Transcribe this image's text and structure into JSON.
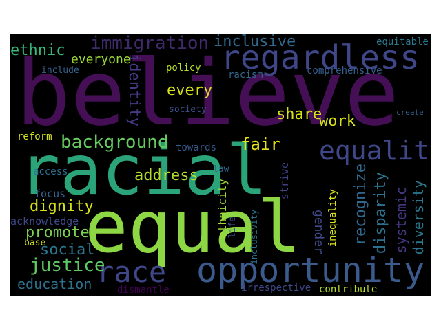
{
  "words": [
    {
      "text": "believe",
      "color": "#440f55"
    },
    {
      "text": "racial",
      "color": "#2ca47a"
    },
    {
      "text": "equal",
      "color": "#8dd644"
    },
    {
      "text": "regardless",
      "color": "#3f4788"
    },
    {
      "text": "opportunity",
      "color": "#3b5b8d"
    },
    {
      "text": "race",
      "color": "#3f4788"
    },
    {
      "text": "equality",
      "color": "#3f4788"
    },
    {
      "text": "immigration",
      "color": "#3f2a6a"
    },
    {
      "text": "inclusive",
      "color": "#31688e"
    },
    {
      "text": "background",
      "color": "#65cb5e"
    },
    {
      "text": "ethnic",
      "color": "#37b878"
    },
    {
      "text": "everyone",
      "color": "#9ed93a"
    },
    {
      "text": "every",
      "color": "#d8e219"
    },
    {
      "text": "policy",
      "color": "#b5de2b"
    },
    {
      "text": "racism",
      "color": "#31688e"
    },
    {
      "text": "comprehensive",
      "color": "#355e8d"
    },
    {
      "text": "equitable",
      "color": "#2a788e"
    },
    {
      "text": "include",
      "color": "#34618d"
    },
    {
      "text": "identity",
      "color": "#443b84"
    },
    {
      "text": "share",
      "color": "#d8e219"
    },
    {
      "text": "work",
      "color": "#d8e219"
    },
    {
      "text": "fair",
      "color": "#e5e419"
    },
    {
      "text": "reform",
      "color": "#d2e21b"
    },
    {
      "text": "towards",
      "color": "#365c8d"
    },
    {
      "text": "address",
      "color": "#b5de2b"
    },
    {
      "text": "access",
      "color": "#2c718e"
    },
    {
      "text": "law",
      "color": "#31688e"
    },
    {
      "text": "dignity",
      "color": "#d8e219"
    },
    {
      "text": "focus",
      "color": "#33638d"
    },
    {
      "text": "promote",
      "color": "#7ad151"
    },
    {
      "text": "social",
      "color": "#2a768e"
    },
    {
      "text": "justice",
      "color": "#5ec962"
    },
    {
      "text": "education",
      "color": "#2c728e"
    },
    {
      "text": "acknowledge",
      "color": "#3f4a8a"
    },
    {
      "text": "base",
      "color": "#d2e21b"
    },
    {
      "text": "dismantle",
      "color": "#440154"
    },
    {
      "text": "ethnicity",
      "color": "#a2da37"
    },
    {
      "text": "life",
      "color": "#3b528b"
    },
    {
      "text": "inclusivity",
      "color": "#2c728e"
    },
    {
      "text": "irrespective",
      "color": "#3f4788"
    },
    {
      "text": "contribute",
      "color": "#b5de2b"
    },
    {
      "text": "inequality",
      "color": "#d8e219"
    },
    {
      "text": "gender",
      "color": "#3e4a89"
    },
    {
      "text": "recognize",
      "color": "#31688e"
    },
    {
      "text": "disparity",
      "color": "#2c728e"
    },
    {
      "text": "systemic",
      "color": "#453781"
    },
    {
      "text": "diversity",
      "color": "#2a788e"
    },
    {
      "text": "strive",
      "color": "#414487"
    },
    {
      "text": "society",
      "color": "#3b528b"
    },
    {
      "text": "create",
      "color": "#34618d"
    }
  ]
}
